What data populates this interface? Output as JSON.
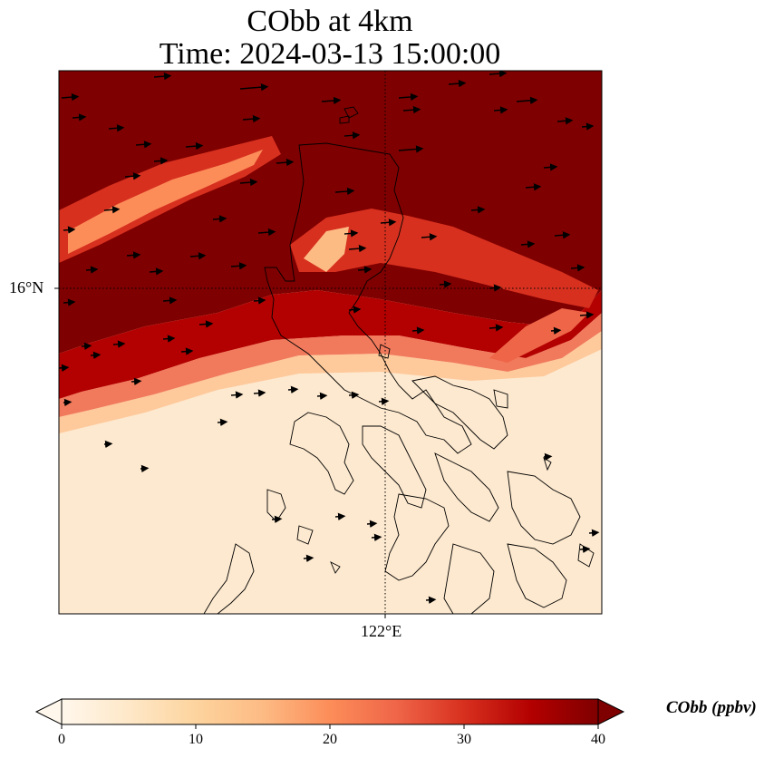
{
  "title": {
    "line1": "CObb at 4km",
    "line2": "Time: 2024-03-13 15:00:00"
  },
  "axes": {
    "lat_label": "16°N",
    "lon_label": "122°E"
  },
  "colorbar": {
    "label": "CObb (ppbv)",
    "ticks": [
      "0",
      "10",
      "20",
      "30",
      "40"
    ],
    "min": 0,
    "max": 40,
    "extend": "both",
    "colormap": [
      "#fff7ec",
      "#fee8c8",
      "#fdd49e",
      "#fdbb84",
      "#fc8d59",
      "#ef6548",
      "#d7301f",
      "#b30000",
      "#7f0000"
    ]
  },
  "map": {
    "field": "CObb",
    "level": "4km",
    "background_high_color": "#7f0000",
    "background_low_color": "#fde9cf",
    "coastline_color": "#000000",
    "gridline_style": "dotted"
  }
}
